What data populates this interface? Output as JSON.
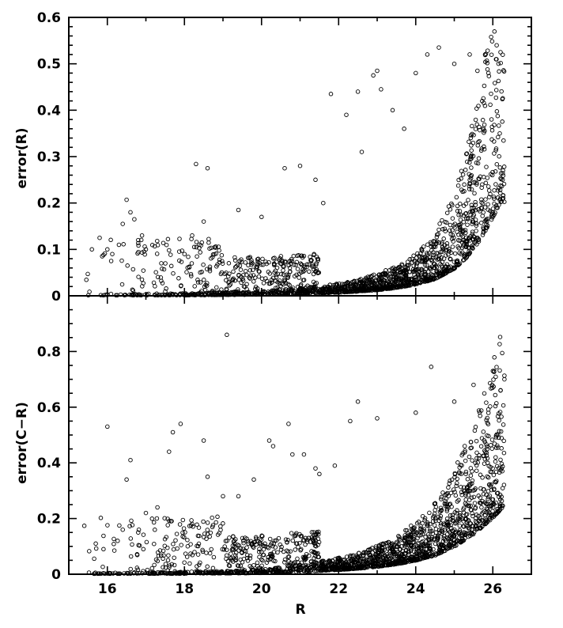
{
  "chart_data": [
    {
      "type": "scatter",
      "title": "",
      "xlabel": "",
      "ylabel": "error(R)",
      "xlim": [
        15,
        27
      ],
      "ylim": [
        0,
        0.6
      ],
      "yticks": [
        0.1,
        0.2,
        0.3,
        0.4,
        0.5,
        0.6
      ],
      "ytick_labels": [
        "0.1",
        "0.2",
        "0.3",
        "0.4",
        "0.5",
        "0.6"
      ],
      "xticks": [
        16,
        18,
        20,
        22,
        24,
        26
      ],
      "zero_label": "0",
      "grid": false,
      "marker": "open-circle",
      "series": [
        {
          "points": [
            [
              15.6,
              0.1
            ],
            [
              15.8,
              0.125
            ],
            [
              15.9,
              0.088
            ],
            [
              16.0,
              0.1
            ],
            [
              16.1,
              0.075
            ],
            [
              16.3,
              0.11
            ],
            [
              16.4,
              0.155
            ],
            [
              16.5,
              0.207
            ],
            [
              16.6,
              0.18
            ],
            [
              16.7,
              0.165
            ],
            [
              16.8,
              0.12
            ],
            [
              16.9,
              0.13
            ],
            [
              17.0,
              0.1
            ],
            [
              17.4,
              0.07
            ],
            [
              17.6,
              0.098
            ],
            [
              18.0,
              0.09
            ],
            [
              18.2,
              0.13
            ],
            [
              18.3,
              0.284
            ],
            [
              18.6,
              0.275
            ],
            [
              18.5,
              0.16
            ],
            [
              19.4,
              0.185
            ],
            [
              20.0,
              0.17
            ],
            [
              20.6,
              0.275
            ],
            [
              21.0,
              0.28
            ],
            [
              21.4,
              0.25
            ],
            [
              21.6,
              0.2
            ],
            [
              21.8,
              0.435
            ],
            [
              22.2,
              0.39
            ],
            [
              22.5,
              0.44
            ],
            [
              22.6,
              0.31
            ],
            [
              22.9,
              0.475
            ],
            [
              23.0,
              0.485
            ],
            [
              23.1,
              0.445
            ],
            [
              23.4,
              0.4
            ],
            [
              23.7,
              0.36
            ],
            [
              24.0,
              0.48
            ],
            [
              24.3,
              0.52
            ],
            [
              24.6,
              0.535
            ],
            [
              25.0,
              0.5
            ],
            [
              25.4,
              0.52
            ],
            [
              25.6,
              0.485
            ],
            [
              25.8,
              0.52
            ],
            [
              26.1,
              0.54
            ],
            [
              26.2,
              0.525
            ]
          ],
          "trend_x": [
            15.0,
            18.0,
            20.0,
            21.0,
            22.0,
            22.5,
            23.0,
            23.5,
            24.0,
            24.5,
            25.0,
            25.3,
            25.6,
            25.9,
            26.2
          ],
          "trend_y": [
            0.002,
            0.003,
            0.006,
            0.01,
            0.016,
            0.021,
            0.028,
            0.038,
            0.055,
            0.08,
            0.13,
            0.18,
            0.25,
            0.34,
            0.45
          ]
        }
      ]
    },
    {
      "type": "scatter",
      "title": "",
      "xlabel": "R",
      "ylabel": "error(C−R)",
      "xlim": [
        15,
        27
      ],
      "ylim": [
        0,
        1
      ],
      "yticks": [
        0.2,
        0.4,
        0.6,
        0.8
      ],
      "ytick_labels": [
        "0.2",
        "0.4",
        "0.6",
        "0.8"
      ],
      "xticks": [
        16,
        18,
        20,
        22,
        24,
        26
      ],
      "xtick_labels": [
        "16",
        "18",
        "20",
        "22",
        "24",
        "26"
      ],
      "zero_label": "0",
      "grid": false,
      "marker": "open-circle",
      "series": [
        {
          "points": [
            [
              15.7,
              0.11
            ],
            [
              15.9,
              0.09
            ],
            [
              16.0,
              0.53
            ],
            [
              16.4,
              0.16
            ],
            [
              16.5,
              0.34
            ],
            [
              16.6,
              0.41
            ],
            [
              16.8,
              0.15
            ],
            [
              17.0,
              0.22
            ],
            [
              17.3,
              0.24
            ],
            [
              17.6,
              0.44
            ],
            [
              17.7,
              0.51
            ],
            [
              17.9,
              0.54
            ],
            [
              18.2,
              0.18
            ],
            [
              18.5,
              0.48
            ],
            [
              18.6,
              0.35
            ],
            [
              19.0,
              0.28
            ],
            [
              19.1,
              0.86
            ],
            [
              19.4,
              0.28
            ],
            [
              19.8,
              0.34
            ],
            [
              20.2,
              0.48
            ],
            [
              20.3,
              0.46
            ],
            [
              20.7,
              0.54
            ],
            [
              20.8,
              0.43
            ],
            [
              21.1,
              0.43
            ],
            [
              21.4,
              0.38
            ],
            [
              21.5,
              0.36
            ],
            [
              21.9,
              0.39
            ],
            [
              22.3,
              0.55
            ],
            [
              22.5,
              0.62
            ],
            [
              23.0,
              0.56
            ],
            [
              24.0,
              0.58
            ],
            [
              24.4,
              0.745
            ],
            [
              25.0,
              0.62
            ],
            [
              25.5,
              0.68
            ],
            [
              26.0,
              0.73
            ],
            [
              26.3,
              0.7
            ],
            [
              26.2,
              0.66
            ]
          ],
          "trend_x": [
            15.0,
            18.0,
            20.0,
            21.0,
            22.0,
            22.5,
            23.0,
            23.5,
            24.0,
            24.5,
            25.0,
            25.5,
            26.0,
            26.3
          ],
          "trend_y": [
            0.003,
            0.005,
            0.01,
            0.02,
            0.035,
            0.045,
            0.06,
            0.08,
            0.11,
            0.15,
            0.22,
            0.32,
            0.45,
            0.55
          ]
        }
      ]
    }
  ]
}
